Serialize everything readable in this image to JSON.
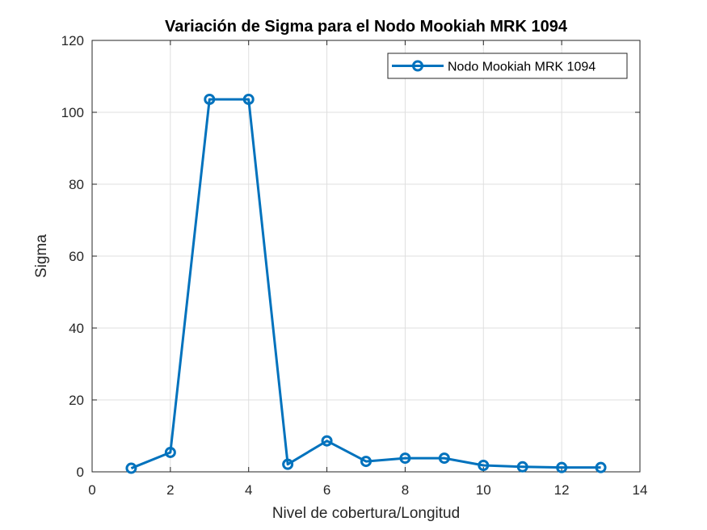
{
  "chart_data": {
    "type": "line",
    "title": "Variación de Sigma para el Nodo Mookiah MRK 1094",
    "xlabel": "Nivel de cobertura/Longitud",
    "ylabel": "Sigma",
    "xlim": [
      0,
      14
    ],
    "ylim": [
      0,
      120
    ],
    "xticks": [
      0,
      2,
      4,
      6,
      8,
      10,
      12,
      14
    ],
    "yticks": [
      0,
      20,
      40,
      60,
      80,
      100,
      120
    ],
    "grid": true,
    "legend_position": "top-right",
    "series": [
      {
        "name": "Nodo Mookiah MRK 1094",
        "color": "#0072BD",
        "marker": "circle",
        "x": [
          1,
          2,
          3,
          4,
          5,
          6,
          7,
          8,
          9,
          10,
          11,
          12,
          13
        ],
        "y": [
          1.0,
          5.4,
          103.6,
          103.6,
          2.1,
          8.6,
          2.9,
          3.8,
          3.8,
          1.8,
          1.4,
          1.2,
          1.2
        ]
      }
    ]
  }
}
